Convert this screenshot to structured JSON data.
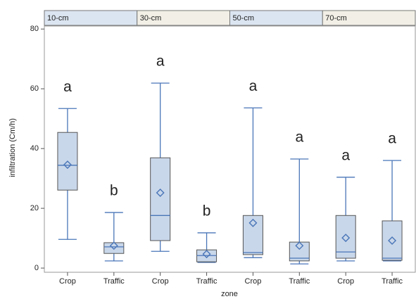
{
  "chart_data": {
    "type": "box",
    "xlabel": "zone",
    "ylabel": "infiltration (Cm/h)",
    "panels": [
      "10-cm",
      "30-cm",
      "50-cm",
      "70-cm"
    ],
    "categories": [
      "Crop",
      "Traffic",
      "Crop",
      "Traffic",
      "Crop",
      "Traffic",
      "Crop",
      "Traffic"
    ],
    "min": [
      9.6,
      2.4,
      5.6,
      1.9,
      3.5,
      1.4,
      2.4,
      2.4
    ],
    "q1": [
      26.1,
      4.9,
      9.2,
      2.1,
      4.5,
      2.4,
      3.3,
      2.6
    ],
    "median": [
      34.4,
      7.1,
      17.6,
      4.2,
      5.2,
      3.3,
      5.4,
      3.3
    ],
    "q3": [
      45.4,
      8.5,
      36.9,
      6.1,
      17.6,
      8.7,
      17.6,
      15.8
    ],
    "max": [
      53.4,
      18.6,
      61.9,
      11.8,
      53.6,
      36.5,
      30.4,
      36
    ],
    "mean": [
      34.6,
      7.5,
      25.2,
      4.7,
      15.1,
      7.5,
      10.1,
      9.2
    ],
    "letters": [
      "a",
      "b",
      "a",
      "b",
      "a",
      "a",
      "a",
      "a"
    ],
    "color": "#4a76b8",
    "fill": "#c9d7ea",
    "ylim": [
      -1.4,
      81
    ],
    "yticks": [
      0,
      20,
      40,
      60,
      80
    ]
  }
}
